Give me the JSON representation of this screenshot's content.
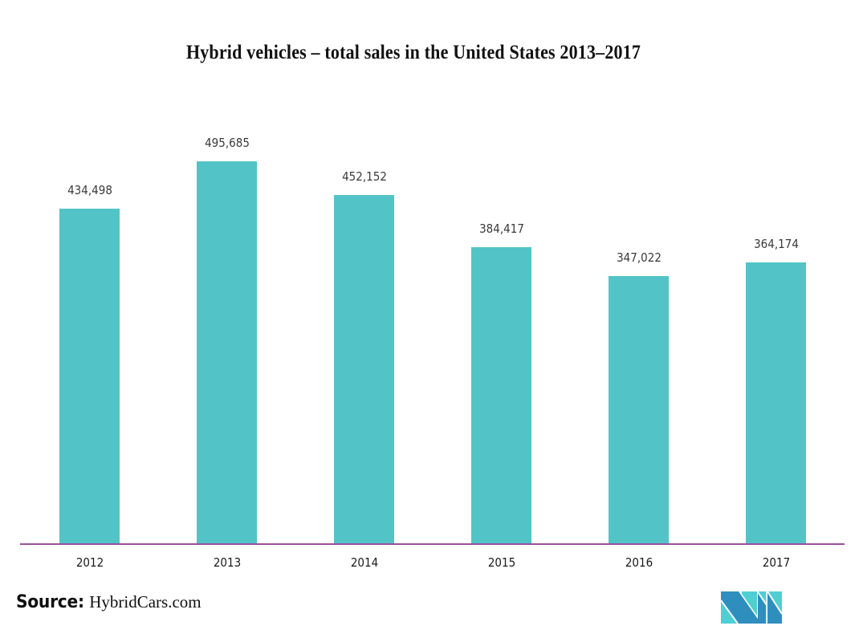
{
  "title": "Hybrid vehicles – total sales in the United States 2013–2017",
  "source": {
    "label": "Source:",
    "value": "HybridCars.com"
  },
  "colors": {
    "bar": "#52c4c7",
    "axis": "#9b4f9e",
    "logo_dark": "#2e8fbf",
    "logo_light": "#4fcfd4"
  },
  "chart_data": {
    "type": "bar",
    "title": "Hybrid vehicles – total sales in the United States 2013–2017",
    "categories": [
      "2012",
      "2013",
      "2014",
      "2015",
      "2016",
      "2017"
    ],
    "values": [
      434498,
      495685,
      452152,
      384417,
      347022,
      364174
    ],
    "value_labels": [
      "434,498",
      "495,685",
      "452,152",
      "384,417",
      "347,022",
      "364,174"
    ],
    "xlabel": "",
    "ylabel": "",
    "ylim": [
      0,
      520000
    ],
    "grid": false,
    "legend": "none",
    "data_labels": true
  }
}
